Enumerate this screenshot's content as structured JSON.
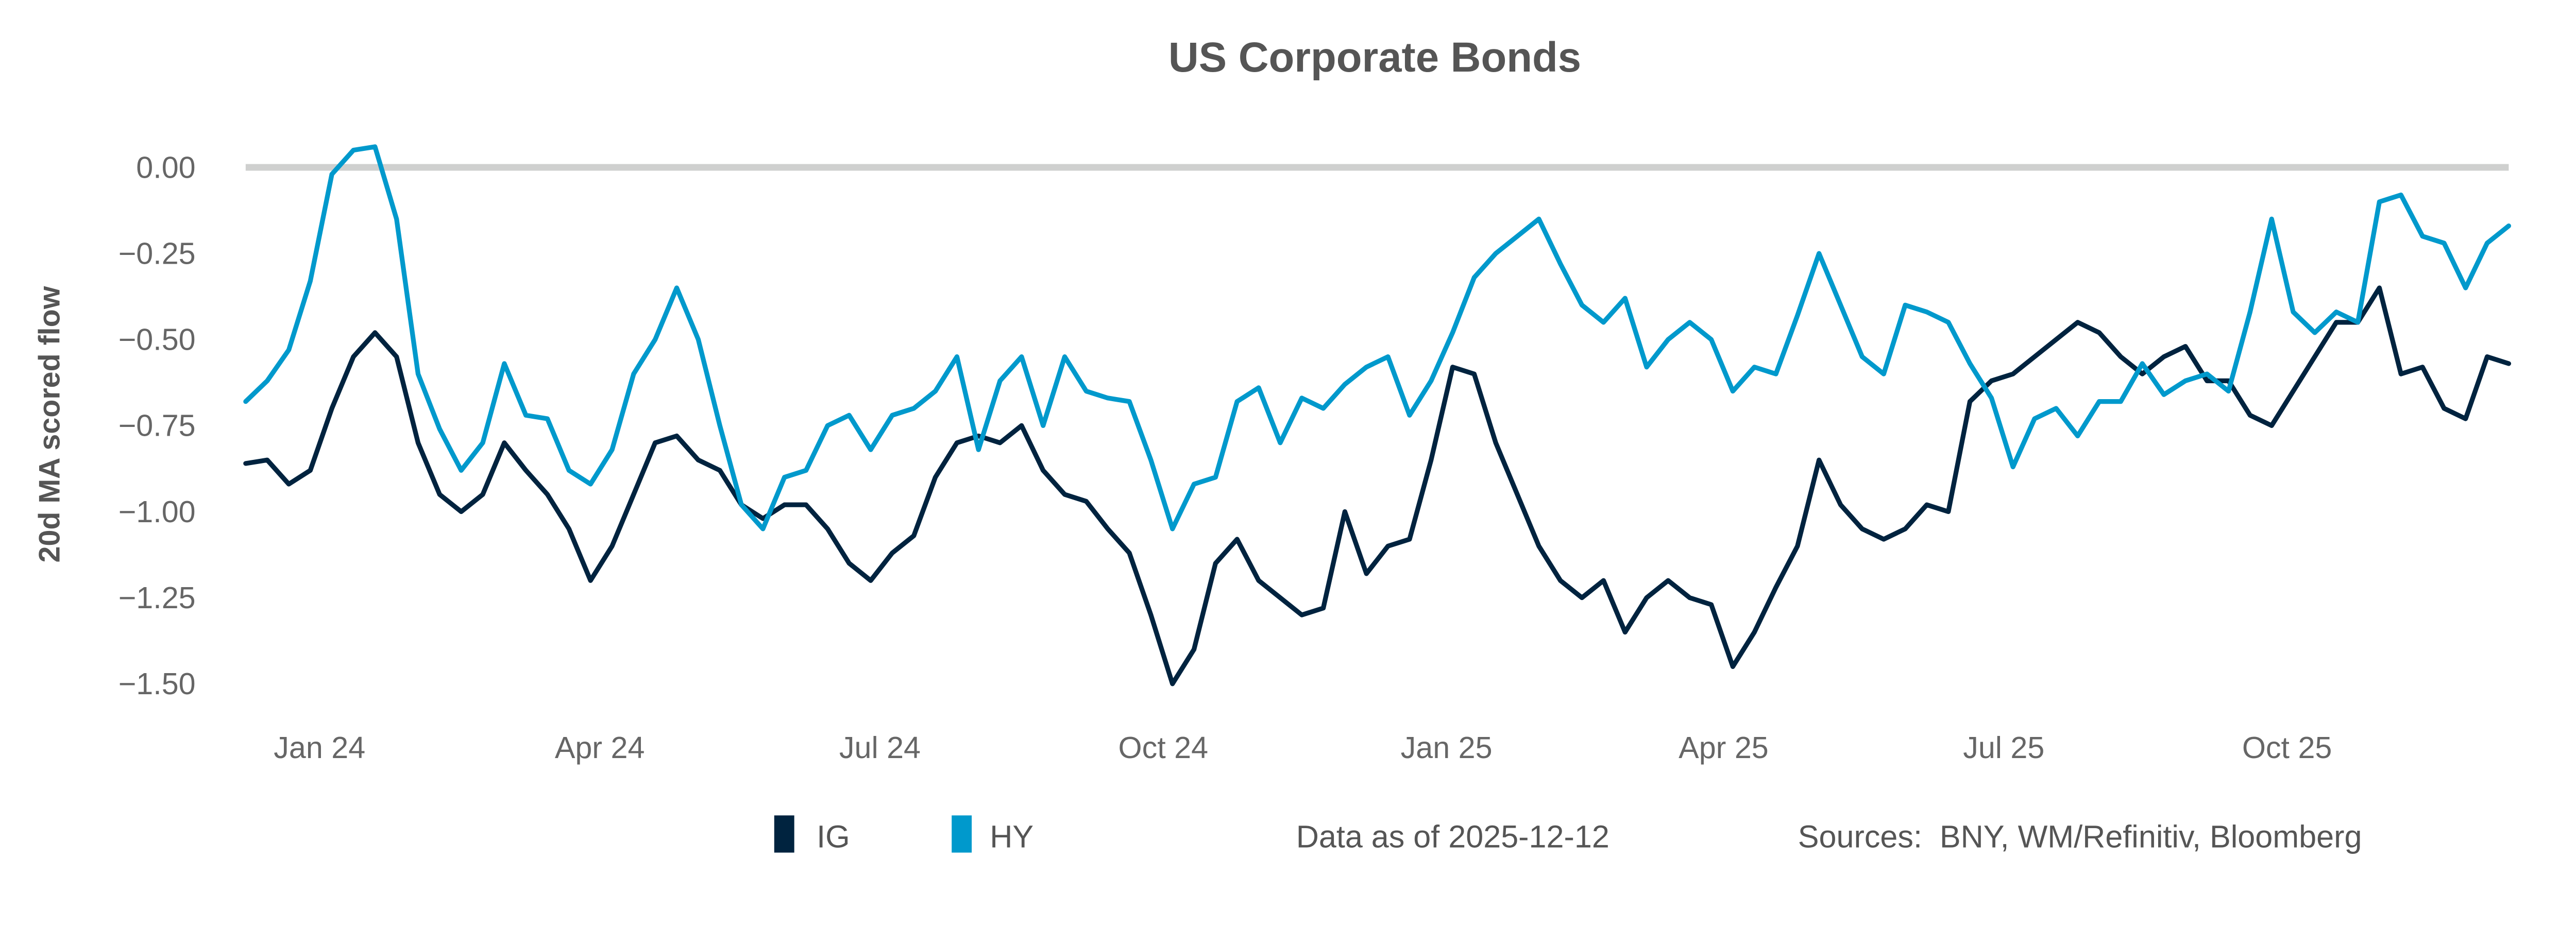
{
  "chart_data": {
    "type": "line",
    "title": "US Corporate Bonds",
    "xlabel": "",
    "ylabel": "20d MA scored flow",
    "ylim": [
      -1.5,
      0.0
    ],
    "yticks": [
      "0.00",
      "−0.25",
      "−0.50",
      "−0.75",
      "−1.00",
      "−1.25",
      "−1.50"
    ],
    "ytick_values": [
      0,
      -0.25,
      -0.5,
      -0.75,
      -1.0,
      -1.25,
      -1.5
    ],
    "xlim": [
      "2023-12-08",
      "2025-12-12"
    ],
    "xticks": [
      {
        "label": "Jan 24",
        "date": "2024-01-01"
      },
      {
        "label": "Apr 24",
        "date": "2024-04-01"
      },
      {
        "label": "Jul 24",
        "date": "2024-07-01"
      },
      {
        "label": "Oct 24",
        "date": "2024-10-01"
      },
      {
        "label": "Jan 25",
        "date": "2025-01-01"
      },
      {
        "label": "Apr 25",
        "date": "2025-04-01"
      },
      {
        "label": "Jul 25",
        "date": "2025-07-01"
      },
      {
        "label": "Oct 25",
        "date": "2025-10-01"
      }
    ],
    "reference_line": 0,
    "grid": false,
    "legend_position": "bottom",
    "x": [
      "2023-12-08",
      "2023-12-15",
      "2023-12-22",
      "2023-12-29",
      "2024-01-05",
      "2024-01-12",
      "2024-01-19",
      "2024-01-26",
      "2024-02-02",
      "2024-02-09",
      "2024-02-16",
      "2024-02-23",
      "2024-03-01",
      "2024-03-08",
      "2024-03-15",
      "2024-03-22",
      "2024-03-29",
      "2024-04-05",
      "2024-04-12",
      "2024-04-19",
      "2024-04-26",
      "2024-05-03",
      "2024-05-10",
      "2024-05-17",
      "2024-05-24",
      "2024-05-31",
      "2024-06-07",
      "2024-06-14",
      "2024-06-21",
      "2024-06-28",
      "2024-07-05",
      "2024-07-12",
      "2024-07-19",
      "2024-07-26",
      "2024-08-02",
      "2024-08-09",
      "2024-08-16",
      "2024-08-23",
      "2024-08-30",
      "2024-09-06",
      "2024-09-13",
      "2024-09-20",
      "2024-09-27",
      "2024-10-04",
      "2024-10-11",
      "2024-10-18",
      "2024-10-25",
      "2024-11-01",
      "2024-11-08",
      "2024-11-15",
      "2024-11-22",
      "2024-11-29",
      "2024-12-06",
      "2024-12-13",
      "2024-12-20",
      "2024-12-27",
      "2025-01-03",
      "2025-01-10",
      "2025-01-17",
      "2025-01-24",
      "2025-01-31",
      "2025-02-07",
      "2025-02-14",
      "2025-02-21",
      "2025-02-28",
      "2025-03-07",
      "2025-03-14",
      "2025-03-21",
      "2025-03-28",
      "2025-04-04",
      "2025-04-11",
      "2025-04-18",
      "2025-04-25",
      "2025-05-02",
      "2025-05-09",
      "2025-05-16",
      "2025-05-23",
      "2025-05-30",
      "2025-06-06",
      "2025-06-13",
      "2025-06-20",
      "2025-06-27",
      "2025-07-04",
      "2025-07-11",
      "2025-07-18",
      "2025-07-25",
      "2025-08-01",
      "2025-08-08",
      "2025-08-15",
      "2025-08-22",
      "2025-08-29",
      "2025-09-05",
      "2025-09-12",
      "2025-09-19",
      "2025-09-26",
      "2025-10-03",
      "2025-10-10",
      "2025-10-17",
      "2025-10-24",
      "2025-10-31",
      "2025-11-07",
      "2025-11-14",
      "2025-11-21",
      "2025-11-28",
      "2025-12-05",
      "2025-12-12"
    ],
    "series": [
      {
        "name": "IG",
        "color": "#00233f",
        "values": [
          -0.86,
          -0.85,
          -0.92,
          -0.88,
          -0.7,
          -0.55,
          -0.48,
          -0.55,
          -0.8,
          -0.95,
          -1.0,
          -0.95,
          -0.8,
          -0.88,
          -0.95,
          -1.05,
          -1.2,
          -1.1,
          -0.95,
          -0.8,
          -0.78,
          -0.85,
          -0.88,
          -0.98,
          -1.02,
          -0.98,
          -0.98,
          -1.05,
          -1.15,
          -1.2,
          -1.12,
          -1.07,
          -0.9,
          -0.8,
          -0.78,
          -0.8,
          -0.75,
          -0.88,
          -0.95,
          -0.97,
          -1.05,
          -1.12,
          -1.3,
          -1.5,
          -1.4,
          -1.15,
          -1.08,
          -1.2,
          -1.25,
          -1.3,
          -1.28,
          -1.0,
          -1.18,
          -1.1,
          -1.08,
          -0.85,
          -0.58,
          -0.6,
          -0.8,
          -0.95,
          -1.1,
          -1.2,
          -1.25,
          -1.2,
          -1.35,
          -1.25,
          -1.2,
          -1.25,
          -1.27,
          -1.45,
          -1.35,
          -1.22,
          -1.1,
          -0.85,
          -0.98,
          -1.05,
          -1.08,
          -1.05,
          -0.98,
          -1.0,
          -0.68,
          -0.62,
          -0.6,
          -0.55,
          -0.5,
          -0.45,
          -0.48,
          -0.55,
          -0.6,
          -0.55,
          -0.52,
          -0.62,
          -0.62,
          -0.72,
          -0.75,
          -0.65,
          -0.55,
          -0.45,
          -0.45,
          -0.35,
          -0.6,
          -0.58,
          -0.7,
          -0.73,
          -0.55,
          -0.57
        ]
      },
      {
        "name": "HY",
        "color": "#0099cc",
        "values": [
          -0.68,
          -0.62,
          -0.53,
          -0.33,
          -0.02,
          0.05,
          0.06,
          -0.15,
          -0.6,
          -0.76,
          -0.88,
          -0.8,
          -0.57,
          -0.72,
          -0.73,
          -0.88,
          -0.92,
          -0.82,
          -0.6,
          -0.5,
          -0.35,
          -0.5,
          -0.75,
          -0.98,
          -1.05,
          -0.9,
          -0.88,
          -0.75,
          -0.72,
          -0.82,
          -0.72,
          -0.7,
          -0.65,
          -0.55,
          -0.82,
          -0.62,
          -0.55,
          -0.75,
          -0.55,
          -0.65,
          -0.67,
          -0.68,
          -0.85,
          -1.05,
          -0.92,
          -0.9,
          -0.68,
          -0.64,
          -0.8,
          -0.67,
          -0.7,
          -0.63,
          -0.58,
          -0.55,
          -0.72,
          -0.62,
          -0.48,
          -0.32,
          -0.25,
          -0.2,
          -0.15,
          -0.28,
          -0.4,
          -0.45,
          -0.38,
          -0.58,
          -0.5,
          -0.45,
          -0.5,
          -0.65,
          -0.58,
          -0.6,
          -0.43,
          -0.25,
          -0.4,
          -0.55,
          -0.6,
          -0.4,
          -0.42,
          -0.45,
          -0.57,
          -0.67,
          -0.87,
          -0.73,
          -0.7,
          -0.78,
          -0.68,
          -0.68,
          -0.57,
          -0.66,
          -0.62,
          -0.6,
          -0.65,
          -0.42,
          -0.15,
          -0.42,
          -0.48,
          -0.42,
          -0.45,
          -0.1,
          -0.08,
          -0.2,
          -0.22,
          -0.35,
          -0.22,
          -0.17
        ]
      }
    ]
  },
  "legend": {
    "items": [
      {
        "label": "IG",
        "color": "#00233f"
      },
      {
        "label": "HY",
        "color": "#0099cc"
      }
    ],
    "data_as_of": "Data as of 2025-12-12",
    "sources": "Sources:  BNY, WM/Refinitiv, Bloomberg"
  }
}
